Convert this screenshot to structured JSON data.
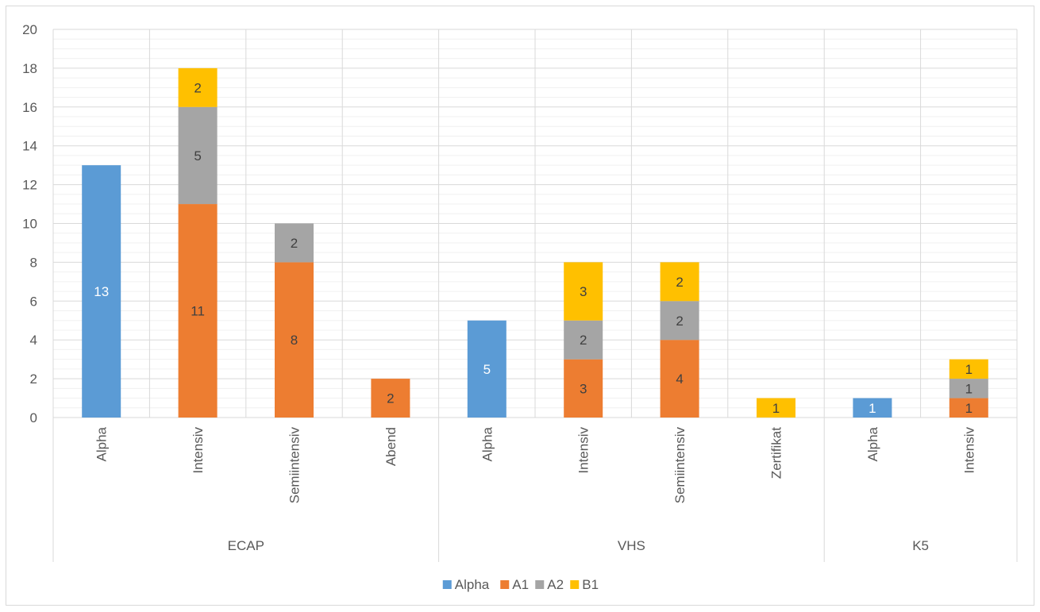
{
  "chart_data": {
    "type": "bar",
    "stacked": true,
    "title": "",
    "xlabel": "",
    "ylabel": "",
    "ylim": [
      0,
      20
    ],
    "yticks": [
      0,
      2,
      4,
      6,
      8,
      10,
      12,
      14,
      16,
      18,
      20
    ],
    "minor_gridlines": true,
    "legend_position": "bottom",
    "groups": [
      {
        "label": "ECAP",
        "categories": [
          "Alpha",
          "Intensiv",
          "Semiintensiv",
          "Abend"
        ]
      },
      {
        "label": "VHS",
        "categories": [
          "Alpha",
          "Intensiv",
          "Semiintensiv",
          "Zertifikat"
        ]
      },
      {
        "label": "K5",
        "categories": [
          "Alpha",
          "Intensiv"
        ]
      }
    ],
    "categories": [
      "Alpha",
      "Intensiv",
      "Semiintensiv",
      "Abend",
      "Alpha",
      "Intensiv",
      "Semiintensiv",
      "Zertifikat",
      "Alpha",
      "Intensiv"
    ],
    "series": [
      {
        "name": "Alpha",
        "color": "#5b9bd5",
        "label_color": "#ffffff",
        "values": [
          13,
          0,
          0,
          0,
          5,
          0,
          0,
          0,
          1,
          0
        ]
      },
      {
        "name": "A1",
        "color": "#ed7d31",
        "label_color": "#404040",
        "values": [
          0,
          11,
          8,
          2,
          0,
          3,
          4,
          0,
          0,
          1
        ]
      },
      {
        "name": "A2",
        "color": "#a5a5a5",
        "label_color": "#404040",
        "values": [
          0,
          5,
          2,
          0,
          0,
          2,
          2,
          0,
          0,
          1
        ]
      },
      {
        "name": "B1",
        "color": "#ffc000",
        "label_color": "#404040",
        "values": [
          0,
          2,
          0,
          0,
          0,
          3,
          2,
          1,
          0,
          1
        ]
      }
    ]
  }
}
